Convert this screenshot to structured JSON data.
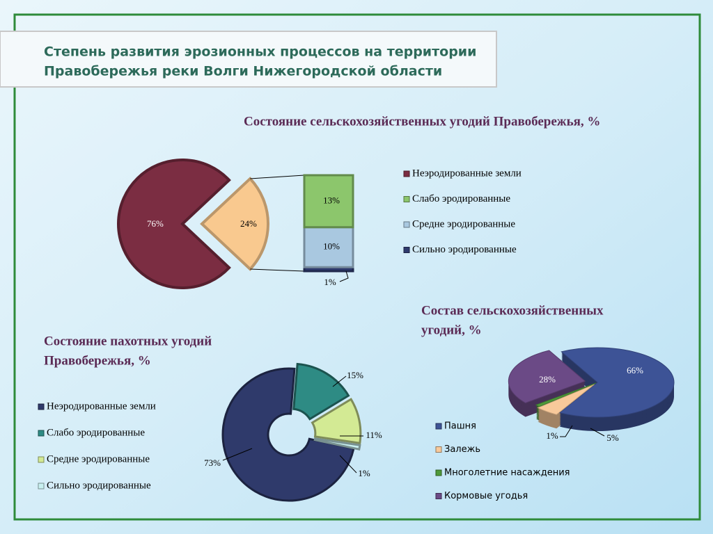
{
  "header": {
    "title": [
      "Степень развития эрозионных процессов на территории",
      "Правобережья реки Волги Нижегородской области"
    ]
  },
  "chart_data": [
    {
      "type": "barofpie",
      "title": [
        "Состояние сельскохозяйственных угодий Правобережья, %"
      ],
      "categories": [
        "Неэродированные земли",
        "Слабо эродированные",
        "Средне эродированные",
        "Сильно эродированные"
      ],
      "values": [
        76,
        13,
        10,
        1
      ],
      "value_labels": [
        "76%",
        "13%",
        "10%",
        "1%"
      ],
      "other_value": 24,
      "other_label": "24%",
      "colors": [
        "#7b2d42",
        "#8cc66c",
        "#a9c8e0",
        "#2e3a6e"
      ],
      "other_color": "#f9c98f",
      "legend": "right"
    },
    {
      "type": "donut",
      "title": [
        "Состояние пахотных угодий",
        "Правобережья, %"
      ],
      "categories": [
        "Неэродированные земли",
        "Слабо эродированные",
        "Средне эродированные",
        "Сильно эродированные"
      ],
      "values": [
        73,
        15,
        11,
        1
      ],
      "value_labels": [
        "73%",
        "15%",
        "11%",
        "1%"
      ],
      "colors": [
        "#2f3a6b",
        "#2e8b84",
        "#d3ea94",
        "#c8f0f0"
      ],
      "legend": "left"
    },
    {
      "type": "pie3d",
      "title": [
        "Состав сельскохозяйственных",
        "угодий, %"
      ],
      "categories": [
        "Пашня",
        "Залежь",
        "Многолетние насаждения",
        "Кормовые угодья"
      ],
      "values": [
        66,
        5,
        1,
        28
      ],
      "value_labels": [
        "66%",
        "5%",
        "1%",
        "28%"
      ],
      "colors": [
        "#3d5396",
        "#f8c99a",
        "#4e9a3a",
        "#6b4a86"
      ],
      "legend": "bottom"
    }
  ]
}
